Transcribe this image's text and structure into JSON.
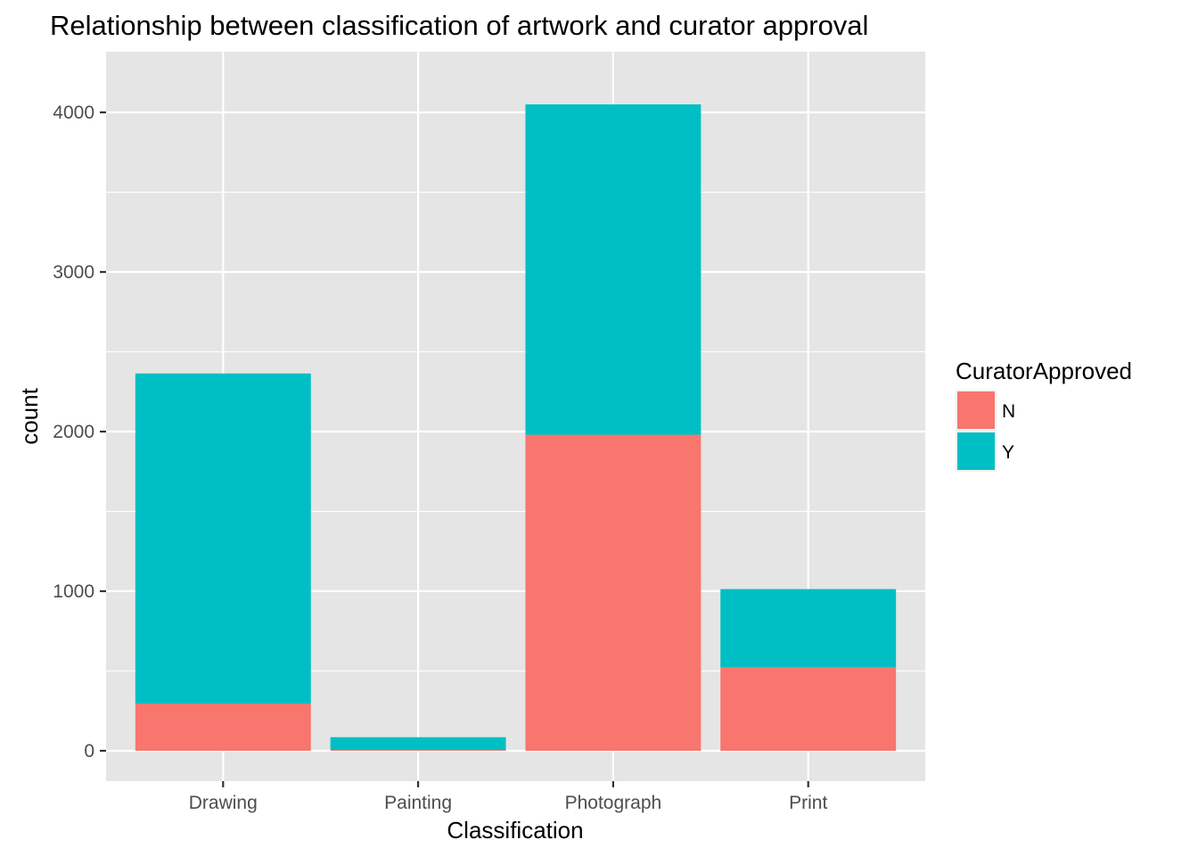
{
  "chart_data": {
    "type": "bar",
    "stacked": true,
    "title": "Relationship between classification of artwork and curator approval",
    "xlabel": "Classification",
    "ylabel": "count",
    "categories": [
      "Drawing",
      "Painting",
      "Photograph",
      "Print"
    ],
    "series": [
      {
        "name": "N",
        "color": "#F8766D",
        "values": [
          296,
          5,
          1980,
          525
        ]
      },
      {
        "name": "Y",
        "color": "#00BFC4",
        "values": [
          2068,
          80,
          2070,
          488
        ]
      }
    ],
    "ylim": [
      -190,
      4380
    ],
    "yticks": [
      0,
      1000,
      2000,
      3000,
      4000
    ],
    "grid": true,
    "legend": {
      "title": "CuratorApproved",
      "position": "right",
      "entries": [
        "N",
        "Y"
      ]
    },
    "panel_background": "#E5E5E5",
    "grid_color": "#FFFFFF",
    "tick_label_color": "#4D4D4D"
  }
}
